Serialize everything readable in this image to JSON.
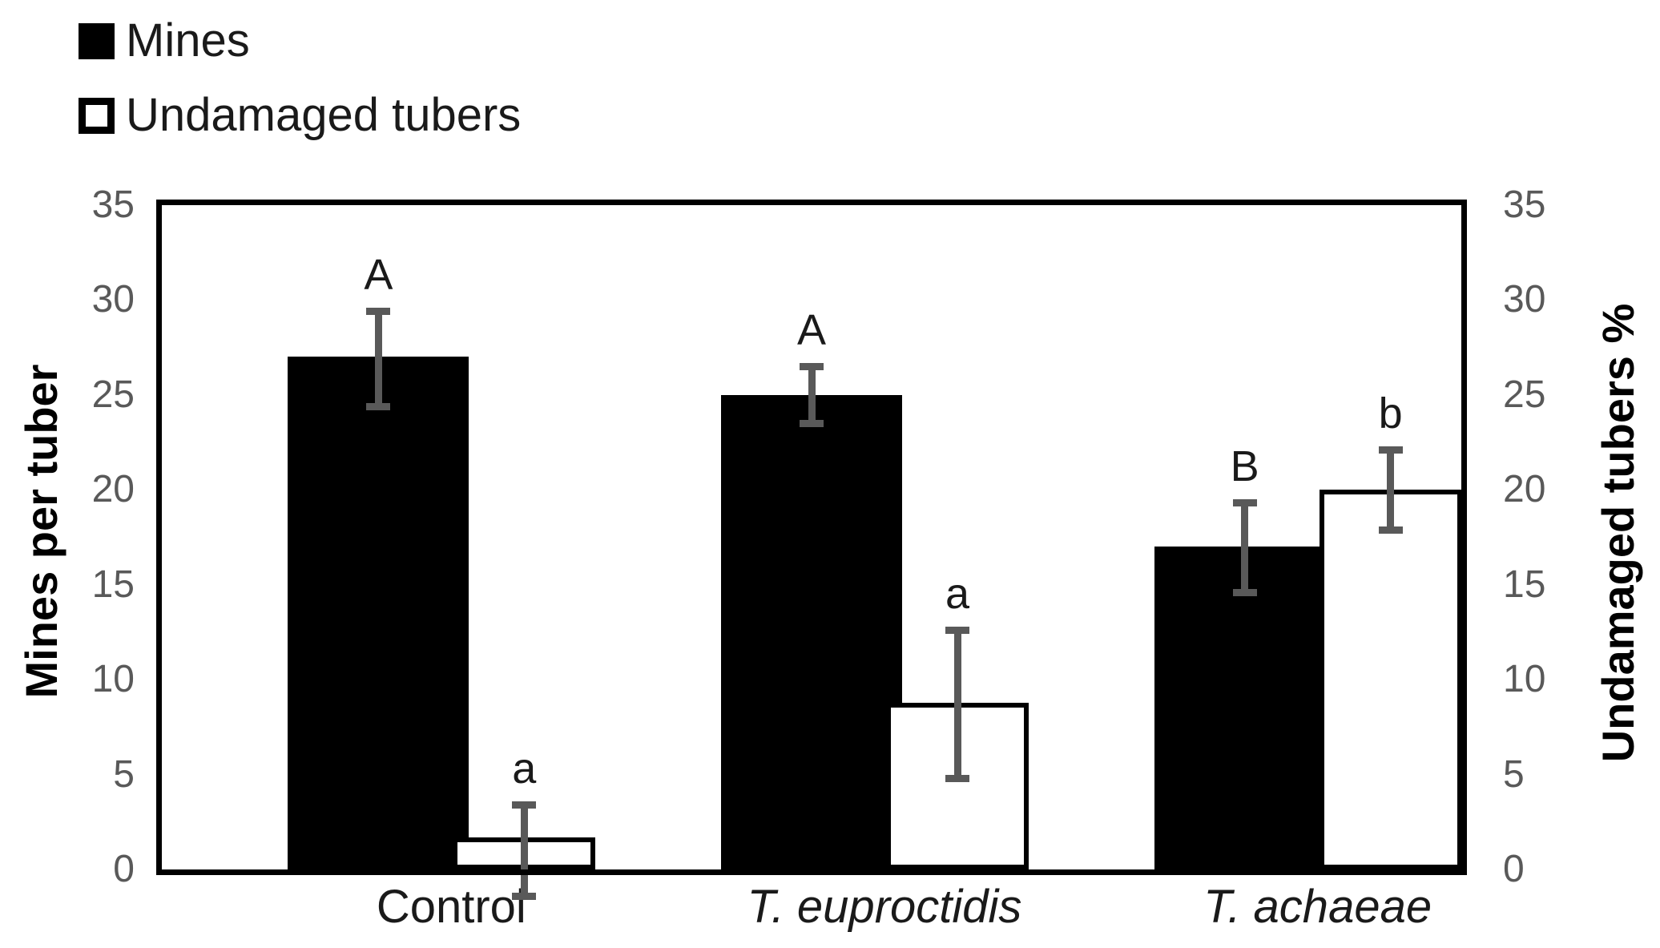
{
  "legend": {
    "items": [
      {
        "label": "Mines",
        "swatch": "black"
      },
      {
        "label": "Undamaged tubers",
        "swatch": "white"
      }
    ]
  },
  "chart_data": {
    "type": "bar",
    "dual_axis": true,
    "grid": false,
    "legend_position": "top-left",
    "categories": [
      "Control",
      "T. euproctidis",
      "T. achaeae"
    ],
    "categories_italic": [
      false,
      true,
      true
    ],
    "left_axis": {
      "label": "Mines per tuber",
      "min": 0,
      "max": 35,
      "step": 5,
      "ticks": [
        0,
        5,
        10,
        15,
        20,
        25,
        30,
        35
      ]
    },
    "right_axis": {
      "label": "Undamaged tubers %",
      "min": 0,
      "max": 35,
      "step": 5,
      "ticks": [
        0,
        5,
        10,
        15,
        20,
        25,
        30,
        35
      ]
    },
    "series": [
      {
        "name": "Mines",
        "axis": "left",
        "fill": "#000000",
        "values": [
          27,
          25,
          17
        ],
        "err_plus": [
          2.3,
          1.4,
          2.2
        ],
        "err_minus": [
          2.5,
          1.4,
          2.3
        ],
        "letters": [
          "A",
          "A",
          "B"
        ]
      },
      {
        "name": "Undamaged tubers",
        "axis": "right",
        "fill": "#ffffff",
        "values": [
          1.7,
          8.8,
          20
        ],
        "err_plus": [
          1.6,
          3.7,
          2.0
        ],
        "err_minus": [
          3.0,
          3.9,
          2.0
        ],
        "letters": [
          "a",
          "a",
          "b"
        ]
      }
    ],
    "colors": {
      "bar_black": "#000000",
      "bar_white_fill": "#ffffff",
      "bar_white_border": "#000000",
      "error_bar": "#595959",
      "tick_label": "#595959",
      "axis_line": "#000000",
      "letter": "#1a1a1a"
    }
  }
}
